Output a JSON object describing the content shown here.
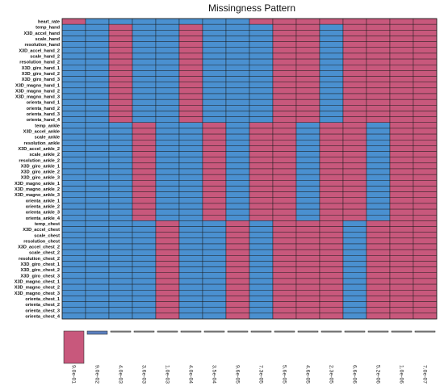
{
  "chart_data": {
    "type": "heatmap",
    "title": "Missingness Pattern",
    "colors": {
      "observed": "#4a90d0",
      "missing": "#c8587c",
      "grid": "#1a1a1a",
      "bar_other": "#5b7fbf"
    },
    "variables": [
      "heart_rate",
      "temp_hand",
      "X3D_accel_hand",
      "scale_hand",
      "resolution_hand",
      "X3D_accel_hand_2",
      "scale_hand_2",
      "resolution_hand_2",
      "X3D_giro_hand_1",
      "X3D_giro_hand_2",
      "X3D_giro_hand_3",
      "X3D_magno_hand_1",
      "X3D_magno_hand_2",
      "X3D_magno_hand_3",
      "orienta_hand_1",
      "orienta_hand_2",
      "orienta_hand_3",
      "orienta_hand_4",
      "temp_ankle",
      "X3D_accel_ankle",
      "scale_ankle",
      "resolution_ankle",
      "X3D_accel_ankle_2",
      "scale_ankle_2",
      "resolution_ankle_2",
      "X3D_giro_ankle_1",
      "X3D_giro_ankle_2",
      "X3D_giro_ankle_3",
      "X3D_magno_ankle_1",
      "X3D_magno_ankle_2",
      "X3D_magno_ankle_3",
      "orienta_ankle_1",
      "orienta_ankle_2",
      "orienta_ankle_3",
      "orienta_ankle_4",
      "temp_chest",
      "X3D_accel_chest",
      "scale_chest",
      "resolution_chest",
      "X3D_accel_chest_2",
      "scale_chest_2",
      "resolution_chest_2",
      "X3D_giro_chest_1",
      "X3D_giro_chest_2",
      "X3D_giro_chest_3",
      "X3D_magno_chest_1",
      "X3D_magno_chest_2",
      "X3D_magno_chest_3",
      "orienta_chest_1",
      "orienta_chest_2",
      "orienta_chest_3",
      "orienta_chest_4"
    ],
    "pattern_proportions": [
      "9.0e-01",
      "9.0e-02",
      "4.0e-03",
      "3.6e-03",
      "1.0e-03",
      "4.0e-04",
      "3.5e-04",
      "9.6e-05",
      "7.3e-05",
      "5.6e-05",
      "4.6e-05",
      "2.3e-05",
      "6.6e-06",
      "5.2e-06",
      "1.0e-06",
      "7.0e-07"
    ],
    "pattern_values": [
      0.9,
      0.09,
      0.004,
      0.0036,
      0.001,
      0.0004,
      0.00035,
      9.6e-05,
      7.3e-05,
      5.6e-05,
      4.6e-05,
      2.3e-05,
      6.6e-06,
      5.2e-06,
      1e-06,
      7e-07
    ],
    "pattern_missing_groups": [
      [
        "heart_rate"
      ],
      [],
      [
        "hand"
      ],
      [
        "ankle"
      ],
      [
        "chest"
      ],
      [
        "hand"
      ],
      [
        "ankle"
      ],
      [
        "chest"
      ],
      [
        "heart_rate",
        "ankle"
      ],
      [
        "heart_rate",
        "hand",
        "ankle",
        "chest"
      ],
      [
        "heart_rate",
        "hand",
        "chest"
      ],
      [
        "heart_rate",
        "ankle",
        "chest"
      ],
      [
        "heart_rate",
        "hand",
        "ankle"
      ],
      [
        "heart_rate",
        "hand",
        "chest"
      ],
      [
        "heart_rate",
        "hand",
        "ankle",
        "chest"
      ],
      [
        "heart_rate",
        "hand",
        "ankle",
        "chest"
      ]
    ],
    "variable_groups": {
      "heart_rate": [
        0,
        0
      ],
      "hand": [
        1,
        17
      ],
      "ankle": [
        18,
        34
      ],
      "chest": [
        35,
        51
      ]
    }
  }
}
